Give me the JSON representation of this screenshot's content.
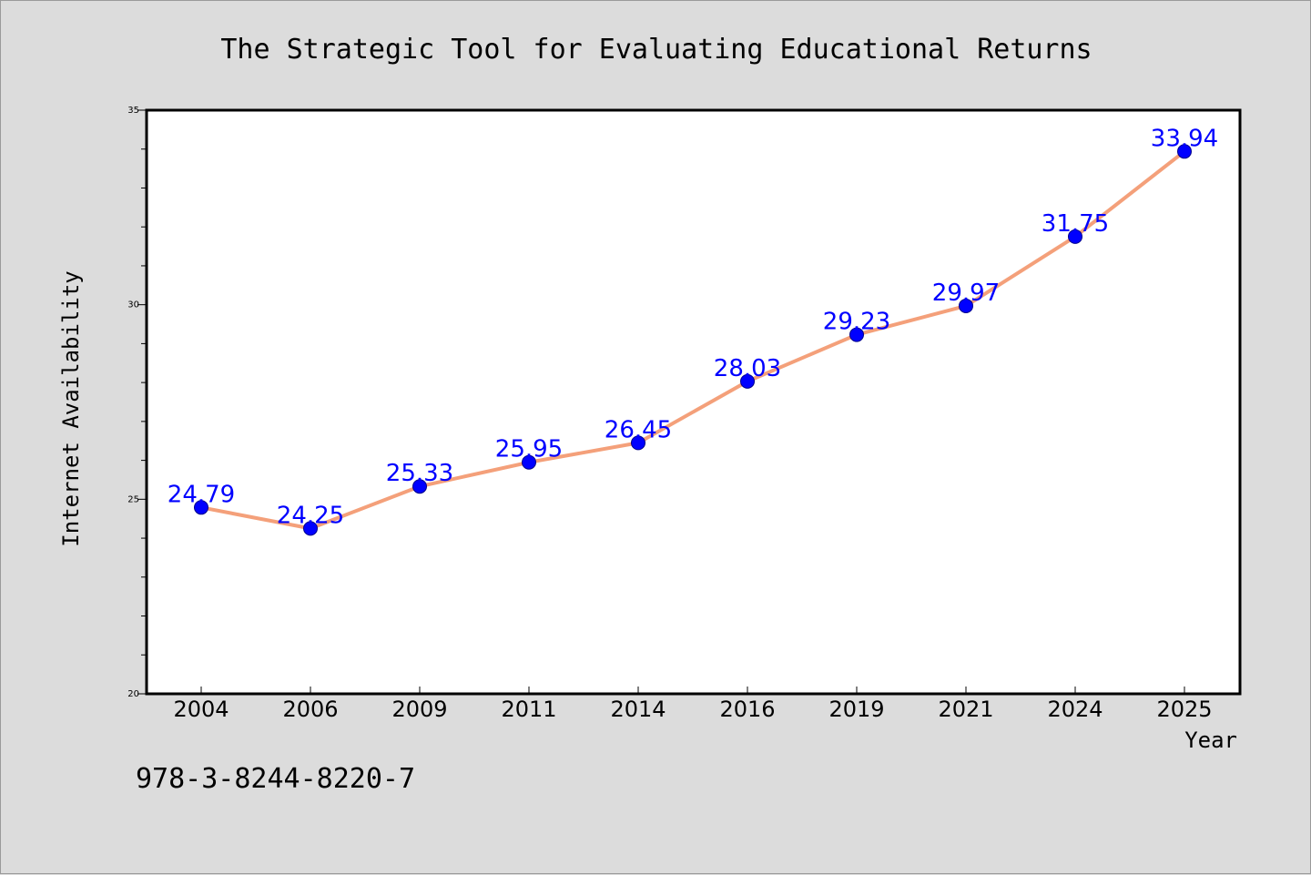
{
  "chart_data": {
    "type": "line",
    "title": "The Strategic Tool for Evaluating Educational Returns",
    "xlabel": "Year",
    "ylabel": "Internet Availability",
    "categories": [
      "2004",
      "2006",
      "2009",
      "2011",
      "2014",
      "2016",
      "2019",
      "2021",
      "2024",
      "2025"
    ],
    "series": [
      {
        "values": [
          24.79,
          24.25,
          25.33,
          25.95,
          26.45,
          28.03,
          29.23,
          29.97,
          31.75,
          33.94
        ],
        "labels": [
          "24.79",
          "24.25",
          "25.33",
          "25.95",
          "26.45",
          "28.03",
          "29.23",
          "29.97",
          "31.75",
          "33.94"
        ],
        "line_color": "#f4a07a",
        "marker_color": "#0000ff"
      }
    ],
    "ylim": [
      20,
      35
    ],
    "yticks": [
      "20",
      "25",
      "30",
      "35"
    ],
    "grid": false,
    "legend": "none"
  },
  "footnote": "978-3-8244-8220-7",
  "colors": {
    "background": "#dcdcdc",
    "plot_background": "#ffffff",
    "line": "#f4a07a",
    "marker": "#0000ff",
    "data_label": "#0000ff"
  }
}
